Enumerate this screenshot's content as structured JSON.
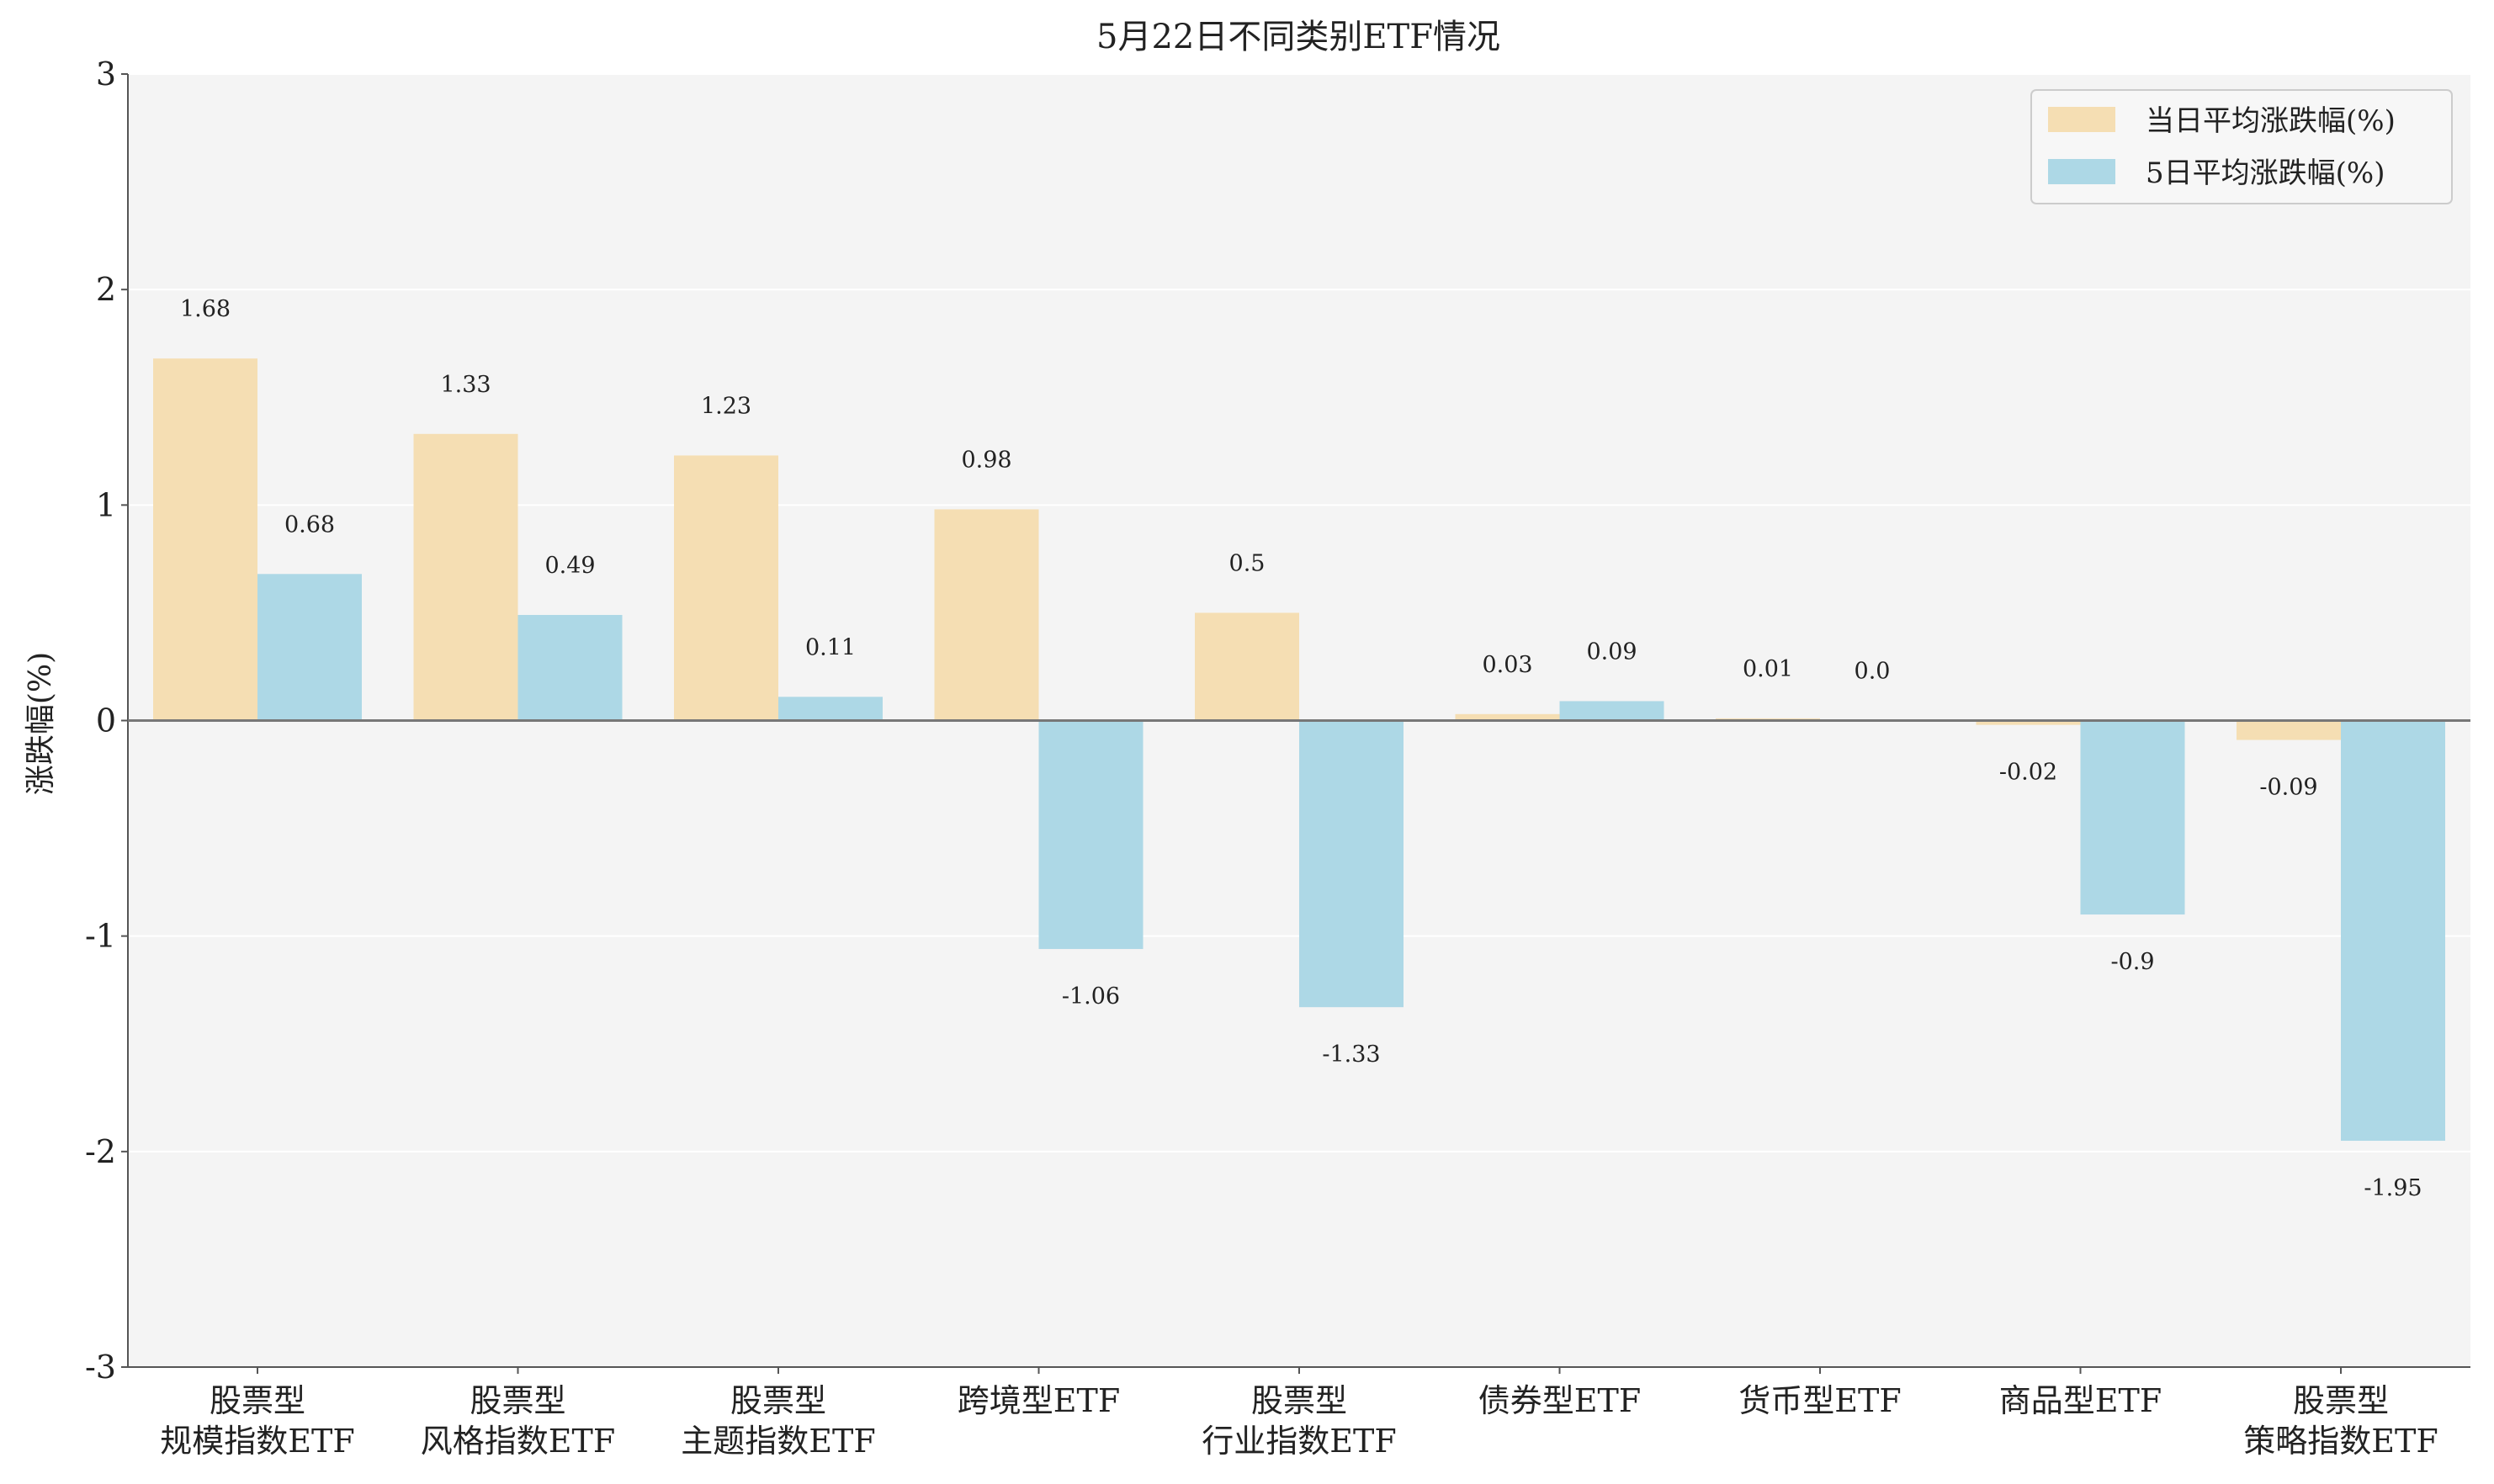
{
  "chart_data": {
    "type": "bar",
    "title": "5月22日不同类别ETF情况",
    "ylabel": "涨跌幅(%)",
    "ylim": [
      -3,
      3
    ],
    "yticks": [
      "-3",
      "-2",
      "-1",
      "0",
      "1",
      "2",
      "3"
    ],
    "grid": true,
    "legend_position": "top-right",
    "categories": [
      [
        "股票型",
        "规模指数ETF"
      ],
      [
        "股票型",
        "风格指数ETF"
      ],
      [
        "股票型",
        "主题指数ETF"
      ],
      [
        "跨境型ETF"
      ],
      [
        "股票型",
        "行业指数ETF"
      ],
      [
        "债券型ETF"
      ],
      [
        "货币型ETF"
      ],
      [
        "商品型ETF"
      ],
      [
        "股票型",
        "策略指数ETF"
      ]
    ],
    "series": [
      {
        "name": "当日平均涨跌幅(%)",
        "color": "#f5deb3",
        "values": [
          1.68,
          1.33,
          1.23,
          0.98,
          0.5,
          0.03,
          0.01,
          -0.02,
          -0.09
        ],
        "labels": [
          "1.68",
          "1.33",
          "1.23",
          "0.98",
          "0.5",
          "0.03",
          "0.01",
          "-0.02",
          "-0.09"
        ]
      },
      {
        "name": "5日平均涨跌幅(%)",
        "color": "#add8e6",
        "values": [
          0.68,
          0.49,
          0.11,
          -1.06,
          -1.33,
          0.09,
          0.0,
          -0.9,
          -1.95
        ],
        "labels": [
          "0.68",
          "0.49",
          "0.11",
          "-1.06",
          "-1.33",
          "0.09",
          "0.0",
          "-0.9",
          "-1.95"
        ]
      }
    ]
  }
}
